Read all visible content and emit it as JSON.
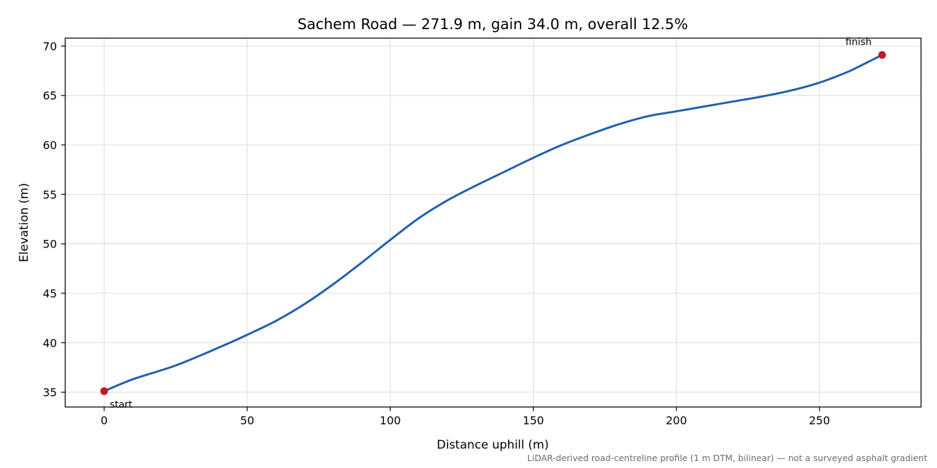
{
  "chart_data": {
    "type": "line",
    "title": "Sachem Road — 271.9 m, gain 34.0 m, overall 12.5%",
    "xlabel": "Distance uphill (m)",
    "ylabel": "Elevation (m)",
    "xlim": [
      -13.6,
      285.5
    ],
    "ylim": [
      33.5,
      70.8
    ],
    "xticks": [
      0,
      50,
      100,
      150,
      200,
      250
    ],
    "yticks": [
      35,
      40,
      45,
      50,
      55,
      60,
      65,
      70
    ],
    "grid": true,
    "line_color": "#1f5fb0",
    "marker_color": "#c0182b",
    "series": [
      {
        "x": [
          0,
          10,
          25,
          40,
          50,
          60,
          70,
          80,
          90,
          100,
          110,
          120,
          130,
          140,
          150,
          160,
          170,
          180,
          190,
          200,
          210,
          220,
          230,
          240,
          250,
          260,
          265,
          271.9
        ],
        "y": [
          35.1,
          36.3,
          37.7,
          39.5,
          40.8,
          42.2,
          43.9,
          45.9,
          48.1,
          50.4,
          52.6,
          54.4,
          55.9,
          57.3,
          58.7,
          60.0,
          61.1,
          62.1,
          62.9,
          63.4,
          63.9,
          64.4,
          64.9,
          65.5,
          66.3,
          67.4,
          68.1,
          69.1
        ]
      }
    ],
    "points": [
      {
        "label": "start",
        "x": 0,
        "y": 35.1
      },
      {
        "label": "finish",
        "x": 271.9,
        "y": 69.1
      }
    ],
    "footnote": "LiDAR-derived road-centreline profile (1 m DTM, bilinear) — not a surveyed asphalt gradient"
  }
}
